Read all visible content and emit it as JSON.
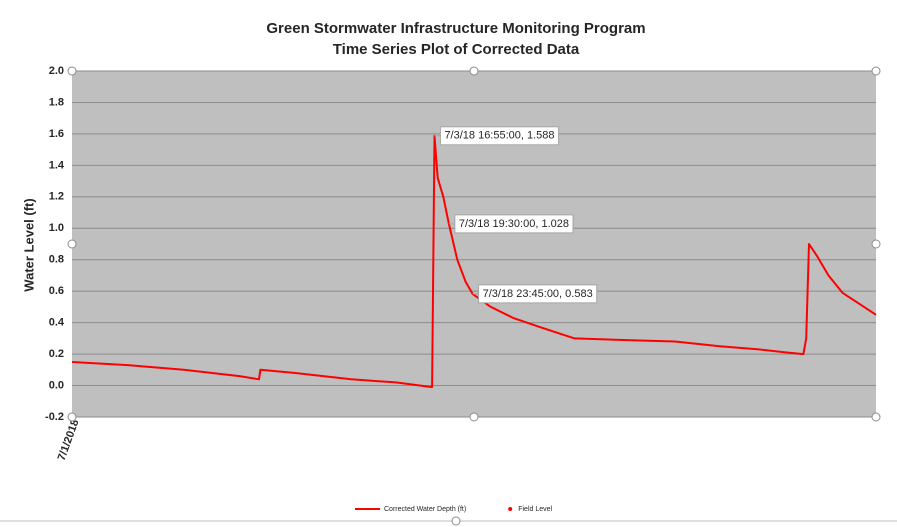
{
  "chart_data": {
    "type": "line",
    "title": "Green Stormwater Infrastructure Monitoring Program",
    "subtitle": "Time Series Plot of Corrected Data",
    "y_label": "Water Level (ft)",
    "x": [
      "2018-07-01T00:00",
      "2018-07-01T10:00",
      "2018-07-01T20:00",
      "2018-07-02T06:00",
      "2018-07-02T09:30",
      "2018-07-02T09:45",
      "2018-07-02T16:00",
      "2018-07-03T02:00",
      "2018-07-03T10:00",
      "2018-07-03T16:30",
      "2018-07-03T16:55",
      "2018-07-03T17:30",
      "2018-07-03T18:30",
      "2018-07-03T19:30",
      "2018-07-03T21:00",
      "2018-07-03T22:30",
      "2018-07-03T23:45",
      "2018-07-04T03:00",
      "2018-07-04T07:00",
      "2018-07-04T12:00",
      "2018-07-04T18:00",
      "2018-07-05T02:00",
      "2018-07-05T12:00",
      "2018-07-05T20:00",
      "2018-07-06T03:00",
      "2018-07-06T08:00",
      "2018-07-06T11:00",
      "2018-07-06T11:30",
      "2018-07-06T12:00",
      "2018-07-06T13:30",
      "2018-07-06T15:30",
      "2018-07-06T18:00",
      "2018-07-06T21:00",
      "2018-07-07T00:00"
    ],
    "series": [
      {
        "name": "Corrected Water Depth (ft)",
        "color": "#ff0000",
        "style": "line",
        "values": [
          0.15,
          0.13,
          0.1,
          0.06,
          0.04,
          0.1,
          0.08,
          0.04,
          0.02,
          -0.01,
          1.588,
          1.32,
          1.2,
          1.028,
          0.8,
          0.66,
          0.583,
          0.5,
          0.43,
          0.37,
          0.3,
          0.29,
          0.28,
          0.25,
          0.23,
          0.21,
          0.2,
          0.3,
          0.9,
          0.82,
          0.7,
          0.59,
          0.52,
          0.45
        ],
        "value_labels": [
          null,
          null,
          null,
          null,
          null,
          null,
          null,
          null,
          null,
          null,
          "7/3/18 16:55:00, 1.588",
          null,
          null,
          "7/3/18 19:30:00, 1.028",
          null,
          null,
          "7/3/18 23:45:00, 0.583",
          null,
          null,
          null,
          null,
          null,
          null,
          null,
          null,
          null,
          null,
          null,
          null,
          null,
          null,
          null,
          null,
          null
        ]
      },
      {
        "name": "Field Level",
        "color": "#ff0000",
        "style": "marker"
      }
    ],
    "xlim": [
      "2018-07-01T00:00",
      "2018-07-07T00:00"
    ],
    "xticks": [
      {
        "value": "2018-07-01T00:00",
        "label": "7/1/2018"
      }
    ],
    "ylim": [
      -0.2,
      2.0
    ],
    "yticks": [
      {
        "value": -0.2,
        "label": "-0.2"
      },
      {
        "value": 0,
        "label": "0.0"
      },
      {
        "value": 0.2,
        "label": "0.2"
      },
      {
        "value": 0.4,
        "label": "0.4"
      },
      {
        "value": 0.6,
        "label": "0.6"
      },
      {
        "value": 0.8,
        "label": "0.8"
      },
      {
        "value": 1.0,
        "label": "1.0"
      },
      {
        "value": 1.2,
        "label": "1.2"
      },
      {
        "value": 1.4,
        "label": "1.4"
      },
      {
        "value": 1.6,
        "label": "1.6"
      },
      {
        "value": 1.8,
        "label": "1.8"
      },
      {
        "value": 2.0,
        "label": "2.0"
      }
    ],
    "grid": true,
    "legend": "bottom"
  }
}
